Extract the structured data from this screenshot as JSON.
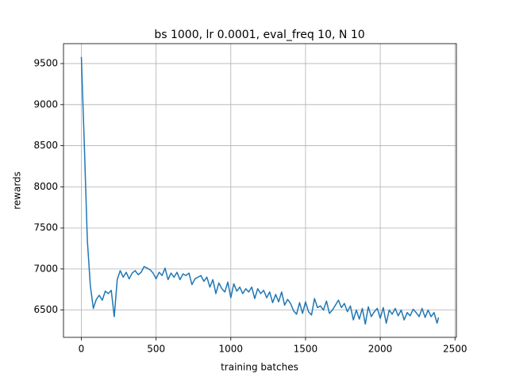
{
  "chart_data": {
    "type": "line",
    "title": "bs 1000, lr 0.0001, eval_freq 10, N 10",
    "xlabel": "training batches",
    "ylabel": "rewards",
    "x": [
      0,
      20,
      40,
      60,
      80,
      100,
      120,
      140,
      160,
      180,
      200,
      220,
      240,
      260,
      280,
      300,
      320,
      340,
      360,
      380,
      400,
      420,
      440,
      460,
      480,
      500,
      520,
      540,
      560,
      580,
      600,
      620,
      640,
      660,
      680,
      700,
      720,
      740,
      760,
      780,
      800,
      820,
      840,
      860,
      880,
      900,
      920,
      940,
      960,
      980,
      1000,
      1020,
      1040,
      1060,
      1080,
      1100,
      1120,
      1140,
      1160,
      1180,
      1200,
      1220,
      1240,
      1260,
      1280,
      1300,
      1320,
      1340,
      1360,
      1380,
      1400,
      1420,
      1440,
      1460,
      1480,
      1500,
      1520,
      1540,
      1560,
      1580,
      1600,
      1620,
      1640,
      1660,
      1680,
      1700,
      1720,
      1740,
      1760,
      1780,
      1800,
      1820,
      1840,
      1860,
      1880,
      1900,
      1920,
      1940,
      1960,
      1980,
      2000,
      2020,
      2040,
      2060,
      2080,
      2100,
      2120,
      2140,
      2160,
      2180,
      2200,
      2220,
      2240,
      2260,
      2280,
      2300,
      2320,
      2340,
      2360,
      2380,
      2390
    ],
    "series": [
      {
        "color": "#1f77b4",
        "values": [
          9580,
          8500,
          7350,
          6800,
          6520,
          6630,
          6680,
          6620,
          6730,
          6700,
          6740,
          6420,
          6870,
          6980,
          6900,
          6960,
          6880,
          6950,
          6980,
          6930,
          6960,
          7030,
          7010,
          6990,
          6950,
          6880,
          6960,
          6920,
          7010,
          6870,
          6950,
          6900,
          6960,
          6870,
          6940,
          6920,
          6950,
          6810,
          6880,
          6900,
          6920,
          6850,
          6900,
          6780,
          6870,
          6700,
          6830,
          6760,
          6720,
          6840,
          6650,
          6820,
          6730,
          6780,
          6700,
          6760,
          6720,
          6780,
          6640,
          6760,
          6700,
          6740,
          6650,
          6720,
          6590,
          6690,
          6600,
          6720,
          6560,
          6630,
          6580,
          6490,
          6450,
          6590,
          6460,
          6600,
          6480,
          6440,
          6640,
          6530,
          6550,
          6500,
          6610,
          6460,
          6500,
          6560,
          6620,
          6530,
          6580,
          6480,
          6550,
          6380,
          6500,
          6390,
          6520,
          6330,
          6540,
          6420,
          6480,
          6520,
          6400,
          6530,
          6340,
          6500,
          6450,
          6520,
          6430,
          6500,
          6380,
          6470,
          6430,
          6510,
          6470,
          6420,
          6520,
          6410,
          6500,
          6420,
          6470,
          6340,
          6410
        ]
      }
    ],
    "xlim": [
      -119.5,
      2509.5
    ],
    "ylim": [
      6168,
      9742
    ],
    "xticks": [
      0,
      500,
      1000,
      1500,
      2000,
      2500
    ],
    "yticks": [
      6500,
      7000,
      7500,
      8000,
      8500,
      9000,
      9500
    ],
    "grid": true
  }
}
